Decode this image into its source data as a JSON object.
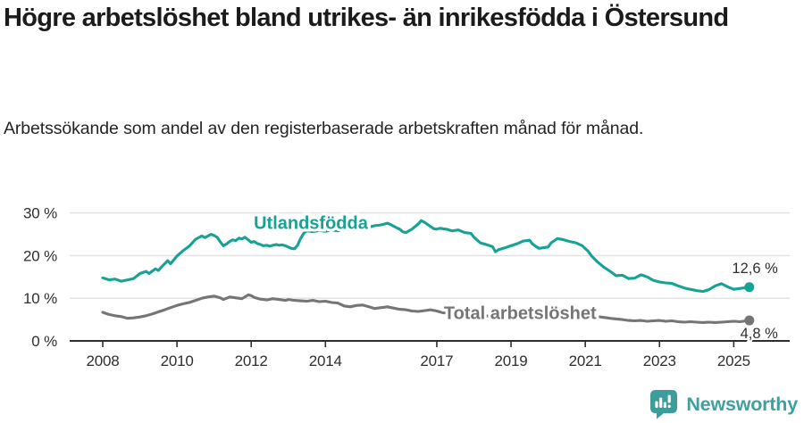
{
  "header": {
    "title": "Högre arbetslöshet bland utrikes- än inrikesfödda i Östersund",
    "subtitle": "Arbetssökande som andel av den registerbaserade arbetskraften månad för månad."
  },
  "chart_data": {
    "type": "line",
    "title": "Högre arbetslöshet bland utrikes- än inrikesfödda i Östersund",
    "subtitle": "Arbetssökande som andel av den registerbaserade arbetskraften månad för månad.",
    "x_unit": "decimal-year (monthly data)",
    "x_range": [
      2008,
      2025.42
    ],
    "ylim": [
      0,
      30
    ],
    "grid": "horizontal",
    "legend_position": "inline-labels-on-lines",
    "y_ticks": [
      {
        "value": 0,
        "label": "0 %"
      },
      {
        "value": 10,
        "label": "10 %"
      },
      {
        "value": 20,
        "label": "20 %"
      },
      {
        "value": 30,
        "label": "30 %"
      }
    ],
    "x_ticks": [
      {
        "value": 2008,
        "label": "2008"
      },
      {
        "value": 2010,
        "label": "2010"
      },
      {
        "value": 2012,
        "label": "2012"
      },
      {
        "value": 2014,
        "label": "2014"
      },
      {
        "value": 2017,
        "label": "2017"
      },
      {
        "value": 2019,
        "label": "2019"
      },
      {
        "value": 2021,
        "label": "2021"
      },
      {
        "value": 2023,
        "label": "2023"
      },
      {
        "value": 2025,
        "label": "2025"
      }
    ],
    "series": [
      {
        "name": "Total arbetslöshet",
        "color": "#757575",
        "label_anchor": [
          2017.19,
          5.1
        ],
        "end_label": "4,8 %",
        "end_label_side": "below",
        "points": [
          [
            2008.0,
            6.7
          ],
          [
            2008.17,
            6.2
          ],
          [
            2008.33,
            5.9
          ],
          [
            2008.5,
            5.7
          ],
          [
            2008.67,
            5.3
          ],
          [
            2008.83,
            5.4
          ],
          [
            2009.0,
            5.6
          ],
          [
            2009.17,
            5.9
          ],
          [
            2009.33,
            6.3
          ],
          [
            2009.5,
            6.8
          ],
          [
            2009.67,
            7.3
          ],
          [
            2009.83,
            7.8
          ],
          [
            2010.0,
            8.3
          ],
          [
            2010.17,
            8.7
          ],
          [
            2010.33,
            9.0
          ],
          [
            2010.5,
            9.5
          ],
          [
            2010.67,
            10.0
          ],
          [
            2010.83,
            10.3
          ],
          [
            2011.0,
            10.5
          ],
          [
            2011.17,
            10.1
          ],
          [
            2011.25,
            9.7
          ],
          [
            2011.42,
            10.3
          ],
          [
            2011.58,
            10.1
          ],
          [
            2011.75,
            9.9
          ],
          [
            2011.92,
            10.8
          ],
          [
            2012.0,
            10.6
          ],
          [
            2012.08,
            10.2
          ],
          [
            2012.25,
            9.8
          ],
          [
            2012.42,
            9.6
          ],
          [
            2012.58,
            9.9
          ],
          [
            2012.75,
            9.7
          ],
          [
            2012.92,
            9.5
          ],
          [
            2013.0,
            9.7
          ],
          [
            2013.17,
            9.5
          ],
          [
            2013.33,
            9.4
          ],
          [
            2013.5,
            9.3
          ],
          [
            2013.67,
            9.5
          ],
          [
            2013.83,
            9.2
          ],
          [
            2014.0,
            9.3
          ],
          [
            2014.17,
            9.0
          ],
          [
            2014.33,
            8.9
          ],
          [
            2014.5,
            8.2
          ],
          [
            2014.67,
            8.0
          ],
          [
            2014.83,
            8.3
          ],
          [
            2015.0,
            8.4
          ],
          [
            2015.17,
            8.0
          ],
          [
            2015.33,
            7.6
          ],
          [
            2015.5,
            7.8
          ],
          [
            2015.67,
            8.0
          ],
          [
            2015.83,
            7.7
          ],
          [
            2016.0,
            7.4
          ],
          [
            2016.17,
            7.3
          ],
          [
            2016.33,
            7.0
          ],
          [
            2016.5,
            6.9
          ],
          [
            2016.67,
            7.1
          ],
          [
            2016.83,
            7.3
          ],
          [
            2017.0,
            7.0
          ],
          [
            2017.17,
            6.6
          ],
          [
            2017.33,
            6.5
          ],
          [
            2017.5,
            6.4
          ],
          [
            2017.67,
            6.3
          ],
          [
            2017.83,
            6.2
          ],
          [
            2018.0,
            6.1
          ],
          [
            2018.25,
            5.9
          ],
          [
            2018.5,
            5.8
          ],
          [
            2018.75,
            5.7
          ],
          [
            2019.0,
            5.6
          ],
          [
            2019.25,
            5.5
          ],
          [
            2019.5,
            5.4
          ],
          [
            2019.75,
            5.5
          ],
          [
            2020.0,
            5.7
          ],
          [
            2020.25,
            6.4
          ],
          [
            2020.5,
            6.6
          ],
          [
            2020.75,
            6.4
          ],
          [
            2021.0,
            6.1
          ],
          [
            2021.25,
            5.8
          ],
          [
            2021.5,
            5.5
          ],
          [
            2021.75,
            5.2
          ],
          [
            2022.0,
            5.0
          ],
          [
            2022.17,
            4.8
          ],
          [
            2022.33,
            4.7
          ],
          [
            2022.5,
            4.8
          ],
          [
            2022.67,
            4.6
          ],
          [
            2022.83,
            4.7
          ],
          [
            2023.0,
            4.8
          ],
          [
            2023.17,
            4.6
          ],
          [
            2023.33,
            4.7
          ],
          [
            2023.5,
            4.5
          ],
          [
            2023.67,
            4.4
          ],
          [
            2023.83,
            4.5
          ],
          [
            2024.0,
            4.4
          ],
          [
            2024.17,
            4.3
          ],
          [
            2024.33,
            4.4
          ],
          [
            2024.5,
            4.3
          ],
          [
            2024.67,
            4.4
          ],
          [
            2024.83,
            4.5
          ],
          [
            2025.0,
            4.6
          ],
          [
            2025.17,
            4.5
          ],
          [
            2025.33,
            4.7
          ],
          [
            2025.42,
            4.8
          ]
        ]
      },
      {
        "name": "Utlandsfödda",
        "color": "#16a294",
        "label_anchor": [
          2012.07,
          26.3
        ],
        "end_label": "12,6 %",
        "end_label_side": "above",
        "points": [
          [
            2008.0,
            14.8
          ],
          [
            2008.17,
            14.3
          ],
          [
            2008.33,
            14.5
          ],
          [
            2008.5,
            14.0
          ],
          [
            2008.67,
            14.3
          ],
          [
            2008.83,
            14.6
          ],
          [
            2009.0,
            15.8
          ],
          [
            2009.17,
            16.3
          ],
          [
            2009.25,
            15.8
          ],
          [
            2009.42,
            16.9
          ],
          [
            2009.5,
            16.5
          ],
          [
            2009.58,
            17.3
          ],
          [
            2009.75,
            18.8
          ],
          [
            2009.83,
            18.1
          ],
          [
            2010.0,
            19.9
          ],
          [
            2010.17,
            21.2
          ],
          [
            2010.33,
            22.2
          ],
          [
            2010.5,
            23.8
          ],
          [
            2010.67,
            24.6
          ],
          [
            2010.75,
            24.2
          ],
          [
            2010.92,
            25.0
          ],
          [
            2011.0,
            24.7
          ],
          [
            2011.08,
            24.3
          ],
          [
            2011.17,
            23.2
          ],
          [
            2011.25,
            22.3
          ],
          [
            2011.33,
            22.7
          ],
          [
            2011.42,
            23.3
          ],
          [
            2011.5,
            23.7
          ],
          [
            2011.58,
            23.5
          ],
          [
            2011.67,
            24.1
          ],
          [
            2011.75,
            23.9
          ],
          [
            2011.83,
            24.3
          ],
          [
            2011.92,
            23.7
          ],
          [
            2012.0,
            23.1
          ],
          [
            2012.08,
            23.3
          ],
          [
            2012.17,
            22.8
          ],
          [
            2012.25,
            22.6
          ],
          [
            2012.33,
            22.3
          ],
          [
            2012.42,
            22.4
          ],
          [
            2012.5,
            22.2
          ],
          [
            2012.58,
            22.4
          ],
          [
            2012.67,
            22.6
          ],
          [
            2012.75,
            22.4
          ],
          [
            2012.83,
            22.5
          ],
          [
            2012.92,
            22.3
          ],
          [
            2013.0,
            22.0
          ],
          [
            2013.08,
            21.7
          ],
          [
            2013.17,
            21.6
          ],
          [
            2013.25,
            22.4
          ],
          [
            2013.33,
            24.0
          ],
          [
            2013.42,
            25.3
          ],
          [
            2013.5,
            25.8
          ],
          [
            2013.67,
            25.6
          ],
          [
            2013.83,
            25.9
          ],
          [
            2014.0,
            25.7
          ],
          [
            2014.17,
            26.0
          ],
          [
            2014.33,
            25.8
          ],
          [
            2014.5,
            26.1
          ],
          [
            2014.67,
            26.0
          ],
          [
            2014.83,
            26.2
          ],
          [
            2015.0,
            26.5
          ],
          [
            2015.17,
            26.7
          ],
          [
            2015.33,
            27.0
          ],
          [
            2015.5,
            27.2
          ],
          [
            2015.67,
            27.6
          ],
          [
            2015.75,
            27.3
          ],
          [
            2015.92,
            26.5
          ],
          [
            2016.0,
            26.2
          ],
          [
            2016.08,
            25.6
          ],
          [
            2016.17,
            25.4
          ],
          [
            2016.33,
            26.2
          ],
          [
            2016.5,
            27.4
          ],
          [
            2016.58,
            28.2
          ],
          [
            2016.67,
            27.8
          ],
          [
            2016.75,
            27.3
          ],
          [
            2016.92,
            26.3
          ],
          [
            2017.0,
            26.2
          ],
          [
            2017.08,
            26.4
          ],
          [
            2017.25,
            26.2
          ],
          [
            2017.42,
            25.8
          ],
          [
            2017.58,
            26.0
          ],
          [
            2017.75,
            25.4
          ],
          [
            2017.92,
            25.2
          ],
          [
            2018.0,
            24.3
          ],
          [
            2018.08,
            23.7
          ],
          [
            2018.17,
            23.0
          ],
          [
            2018.33,
            22.6
          ],
          [
            2018.5,
            22.1
          ],
          [
            2018.58,
            20.9
          ],
          [
            2018.67,
            21.4
          ],
          [
            2018.83,
            21.8
          ],
          [
            2019.0,
            22.3
          ],
          [
            2019.17,
            22.8
          ],
          [
            2019.33,
            23.4
          ],
          [
            2019.5,
            23.6
          ],
          [
            2019.58,
            22.7
          ],
          [
            2019.75,
            21.7
          ],
          [
            2019.92,
            21.9
          ],
          [
            2020.0,
            22.0
          ],
          [
            2020.08,
            23.0
          ],
          [
            2020.25,
            24.0
          ],
          [
            2020.42,
            23.7
          ],
          [
            2020.58,
            23.3
          ],
          [
            2020.75,
            23.0
          ],
          [
            2020.92,
            22.3
          ],
          [
            2021.08,
            21.0
          ],
          [
            2021.17,
            19.9
          ],
          [
            2021.33,
            18.5
          ],
          [
            2021.5,
            17.3
          ],
          [
            2021.67,
            16.3
          ],
          [
            2021.83,
            15.3
          ],
          [
            2022.0,
            15.4
          ],
          [
            2022.17,
            14.6
          ],
          [
            2022.33,
            14.7
          ],
          [
            2022.5,
            15.5
          ],
          [
            2022.67,
            15.0
          ],
          [
            2022.83,
            14.2
          ],
          [
            2023.0,
            13.8
          ],
          [
            2023.17,
            13.6
          ],
          [
            2023.33,
            13.5
          ],
          [
            2023.5,
            12.9
          ],
          [
            2023.67,
            12.4
          ],
          [
            2023.83,
            12.1
          ],
          [
            2024.0,
            11.8
          ],
          [
            2024.17,
            11.6
          ],
          [
            2024.33,
            12.0
          ],
          [
            2024.5,
            12.9
          ],
          [
            2024.67,
            13.4
          ],
          [
            2024.83,
            12.7
          ],
          [
            2025.0,
            12.1
          ],
          [
            2025.17,
            12.3
          ],
          [
            2025.33,
            12.5
          ],
          [
            2025.42,
            12.6
          ]
        ]
      }
    ]
  },
  "footer": {
    "brand": "Newsworthy",
    "logo_icon": "bar-chart-speech-badge-icon",
    "brand_color": "#3fa0a2"
  }
}
